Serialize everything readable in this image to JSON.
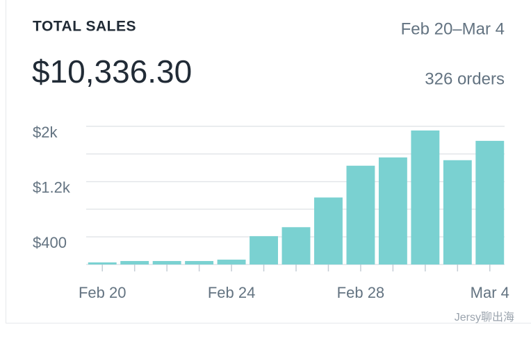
{
  "chart_data": {
    "type": "bar",
    "title": "TOTAL SALES",
    "date_range": "Feb 20–Mar 4",
    "total": "$10,336.30",
    "orders": "326 orders",
    "watermark": "Jersy聊出海",
    "categories": [
      "Feb 20",
      null,
      null,
      null,
      "Feb 24",
      null,
      null,
      null,
      "Feb 28",
      null,
      null,
      null,
      "Mar 4"
    ],
    "values": [
      30,
      50,
      50,
      50,
      70,
      410,
      540,
      970,
      1430,
      1550,
      1940,
      1510,
      1790
    ],
    "color": "#7ad1d1",
    "ylim": [
      0,
      2000
    ],
    "yticks": [
      {
        "value": 400,
        "label": "$400"
      },
      {
        "value": 800,
        "label": null
      },
      {
        "value": 1200,
        "label": "$1.2k"
      },
      {
        "value": 1600,
        "label": null
      },
      {
        "value": 2000,
        "label": "$2k"
      }
    ],
    "grid": true
  }
}
